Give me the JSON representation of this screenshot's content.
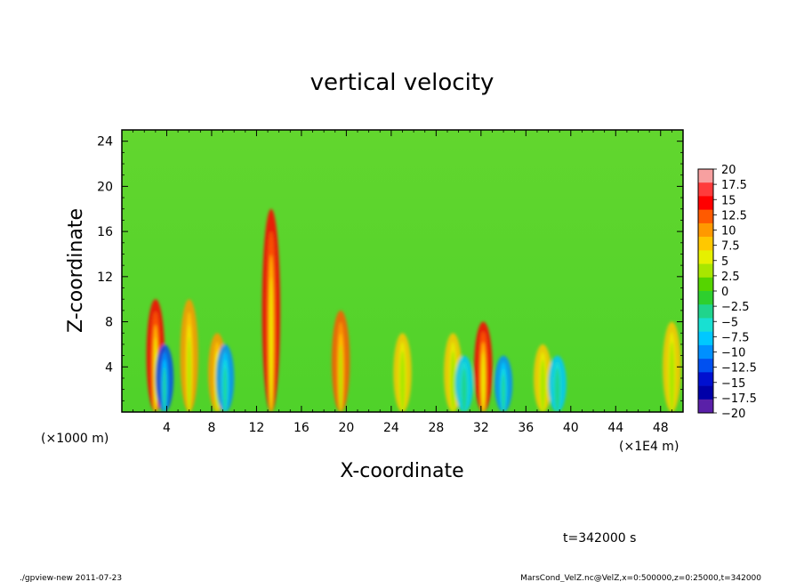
{
  "chart_data": {
    "type": "heatmap",
    "title": "vertical velocity",
    "xlabel": "X-coordinate",
    "ylabel": "Z-coordinate",
    "x_unit_left": "(×1000 m)",
    "x_unit_right": "(×1E4 m)",
    "xlim": [
      0,
      50
    ],
    "ylim": [
      0,
      25
    ],
    "x_ticks": [
      "4",
      "8",
      "12",
      "16",
      "20",
      "24",
      "28",
      "32",
      "36",
      "40",
      "44",
      "48"
    ],
    "y_ticks": [
      "4",
      "8",
      "12",
      "16",
      "20",
      "24"
    ],
    "x_tick_values": [
      4,
      8,
      12,
      16,
      20,
      24,
      28,
      32,
      36,
      40,
      44,
      48
    ],
    "y_tick_values": [
      4,
      8,
      12,
      16,
      20,
      24
    ],
    "colorbar": {
      "labels": [
        "20",
        "17.5",
        "15",
        "12.5",
        "10",
        "7.5",
        "5",
        "2.5",
        "0",
        "−2.5",
        "−5",
        "−7.5",
        "−10",
        "−12.5",
        "−15",
        "−17.5",
        "−20"
      ],
      "colors": [
        "#f7a0a0",
        "#ff3b3b",
        "#ff0000",
        "#ff5a00",
        "#ff9900",
        "#ffc800",
        "#e6f000",
        "#a8e600",
        "#55d400",
        "#2ecf2e",
        "#20d48c",
        "#18e0d2",
        "#00c8ff",
        "#0090ff",
        "#0050f0",
        "#0010d0",
        "#0000a8",
        "#5a20a8"
      ]
    },
    "background_level": "0 to 2.5",
    "features": [
      {
        "x": 3.0,
        "z_top": 10,
        "peak": 15
      },
      {
        "x": 6.0,
        "z_top": 10,
        "peak": 10
      },
      {
        "x": 8.5,
        "z_top": 7,
        "peak": 10
      },
      {
        "x": 13.3,
        "z_top": 18,
        "peak": 15
      },
      {
        "x": 19.5,
        "z_top": 9,
        "peak": 12
      },
      {
        "x": 25.0,
        "z_top": 7,
        "peak": 7.5
      },
      {
        "x": 29.5,
        "z_top": 7,
        "peak": 7.5
      },
      {
        "x": 32.2,
        "z_top": 8,
        "peak": 15
      },
      {
        "x": 37.5,
        "z_top": 6,
        "peak": 7.5
      },
      {
        "x": 49.0,
        "z_top": 8,
        "peak": 7.5
      }
    ],
    "negative_features": [
      {
        "x": 3.8,
        "z_top": 6,
        "peak": -12.5
      },
      {
        "x": 9.2,
        "z_top": 6,
        "peak": -10
      },
      {
        "x": 30.5,
        "z_top": 5,
        "peak": -7.5
      },
      {
        "x": 34.0,
        "z_top": 5,
        "peak": -10
      },
      {
        "x": 38.8,
        "z_top": 5,
        "peak": -7.5
      }
    ]
  },
  "time_label": "t=342000 s",
  "footer_left": "./gpview-new   2011-07-23",
  "footer_right": "MarsCond_VelZ.nc@VelZ,x=0:500000,z=0:25000,t=342000"
}
